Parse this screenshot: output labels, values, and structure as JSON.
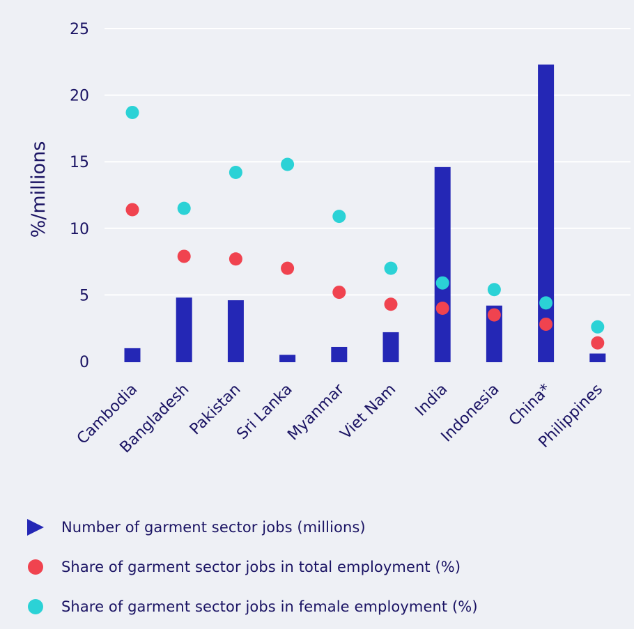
{
  "colors": {
    "background": "#eef0f5",
    "text": "#1a1363",
    "grid": "#ffffff",
    "bar": "#2427b5",
    "total": "#f0434f",
    "female": "#2bd2d6"
  },
  "chart_data": {
    "type": "bar",
    "ylabel": "%/millions",
    "ylim": [
      0,
      25
    ],
    "yticks": [
      "0",
      "5",
      "10",
      "15",
      "20",
      "25"
    ],
    "grid": true,
    "legend_position": "bottom",
    "categories": [
      "Cambodia",
      "Bangladesh",
      "Pakistan",
      "Sri Lanka",
      "Myanmar",
      "Viet Nam",
      "India",
      "Indonesia",
      "China*",
      "Philippines"
    ],
    "series": [
      {
        "name": "Number of garment sector jobs (millions)",
        "mark": "bar",
        "color": "#2427b5",
        "values": [
          1.0,
          4.8,
          4.6,
          0.5,
          1.1,
          2.2,
          14.6,
          4.2,
          22.3,
          0.6
        ]
      },
      {
        "name": "Share of garment sector jobs in total employment (%)",
        "mark": "dot",
        "color": "#f0434f",
        "values": [
          11.4,
          7.9,
          7.7,
          7.0,
          5.2,
          4.3,
          4.0,
          3.5,
          2.8,
          1.4
        ]
      },
      {
        "name": "Share of garment sector jobs in female employment (%)",
        "mark": "dot",
        "color": "#2bd2d6",
        "values": [
          18.7,
          11.5,
          14.2,
          14.8,
          10.9,
          7.0,
          5.9,
          5.4,
          4.4,
          2.6
        ]
      }
    ]
  }
}
